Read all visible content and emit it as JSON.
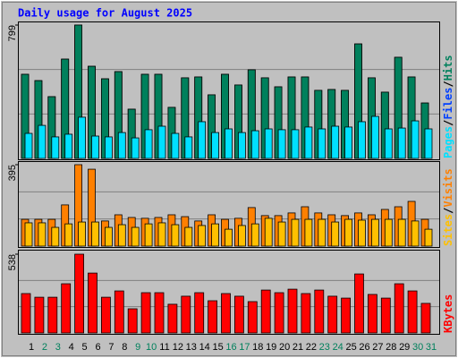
{
  "title": "Daily usage for August 2025",
  "legend_separator": "/",
  "chart_data": [
    {
      "type": "bar",
      "ylim": [
        0,
        799
      ],
      "yticks": [
        799
      ],
      "series": [
        {
          "name": "Hits",
          "color": "#00805c",
          "values": [
            504,
            466,
            370,
            595,
            799,
            552,
            477,
            520,
            295,
            504,
            504,
            306,
            483,
            488,
            381,
            504,
            440,
            531,
            483,
            429,
            488,
            488,
            408,
            413,
            408,
            686,
            483,
            397,
            606,
            488,
            332
          ]
        },
        {
          "name": "Files",
          "color": "#0040ff",
          "values": [
            504,
            466,
            370,
            595,
            799,
            552,
            477,
            520,
            295,
            504,
            504,
            306,
            483,
            488,
            381,
            504,
            440,
            531,
            483,
            429,
            488,
            488,
            408,
            413,
            408,
            686,
            483,
            397,
            606,
            488,
            332
          ]
        },
        {
          "name": "Pages",
          "color": "#00e0ff",
          "values": [
            150,
            198,
            129,
            145,
            247,
            134,
            129,
            155,
            123,
            172,
            193,
            150,
            129,
            220,
            155,
            177,
            155,
            166,
            177,
            172,
            172,
            188,
            177,
            193,
            188,
            220,
            252,
            177,
            182,
            225,
            177
          ]
        }
      ]
    },
    {
      "type": "bar",
      "ylim": [
        0,
        395
      ],
      "yticks": [
        395
      ],
      "series": [
        {
          "name": "Visits",
          "color": "#ff8000",
          "values": [
            130,
            130,
            130,
            200,
            395,
            373,
            122,
            152,
            139,
            135,
            139,
            152,
            143,
            122,
            152,
            130,
            135,
            187,
            148,
            148,
            161,
            191,
            161,
            152,
            148,
            161,
            152,
            178,
            191,
            217,
            130
          ]
        },
        {
          "name": "Sites",
          "color": "#ffc000",
          "values": [
            113,
            113,
            91,
            108,
            117,
            117,
            91,
            104,
            91,
            108,
            113,
            104,
            91,
            100,
            108,
            82,
            100,
            108,
            135,
            117,
            130,
            130,
            130,
            117,
            130,
            126,
            130,
            130,
            130,
            122,
            82
          ]
        }
      ]
    },
    {
      "type": "bar",
      "ylim": [
        0,
        538
      ],
      "yticks": [
        538
      ],
      "series": [
        {
          "name": "KBytes",
          "color": "#ff0000",
          "values": [
            269,
            244,
            244,
            336,
            538,
            409,
            244,
            287,
            165,
            275,
            275,
            196,
            251,
            275,
            220,
            269,
            251,
            214,
            293,
            275,
            299,
            269,
            293,
            251,
            238,
            403,
            263,
            238,
            336,
            287,
            202
          ]
        }
      ],
      "categories": [
        "1",
        "2",
        "3",
        "4",
        "5",
        "6",
        "7",
        "8",
        "9",
        "10",
        "11",
        "12",
        "13",
        "14",
        "15",
        "16",
        "17",
        "18",
        "19",
        "20",
        "21",
        "22",
        "23",
        "24",
        "25",
        "26",
        "27",
        "28",
        "29",
        "30",
        "31"
      ],
      "category_colors": [
        "#000000",
        "#00805c",
        "#00805c",
        "#000000",
        "#000000",
        "#000000",
        "#000000",
        "#000000",
        "#00805c",
        "#00805c",
        "#000000",
        "#000000",
        "#000000",
        "#000000",
        "#000000",
        "#00805c",
        "#00805c",
        "#000000",
        "#000000",
        "#000000",
        "#000000",
        "#000000",
        "#00805c",
        "#00805c",
        "#000000",
        "#000000",
        "#000000",
        "#000000",
        "#000000",
        "#00805c",
        "#00805c"
      ]
    }
  ]
}
